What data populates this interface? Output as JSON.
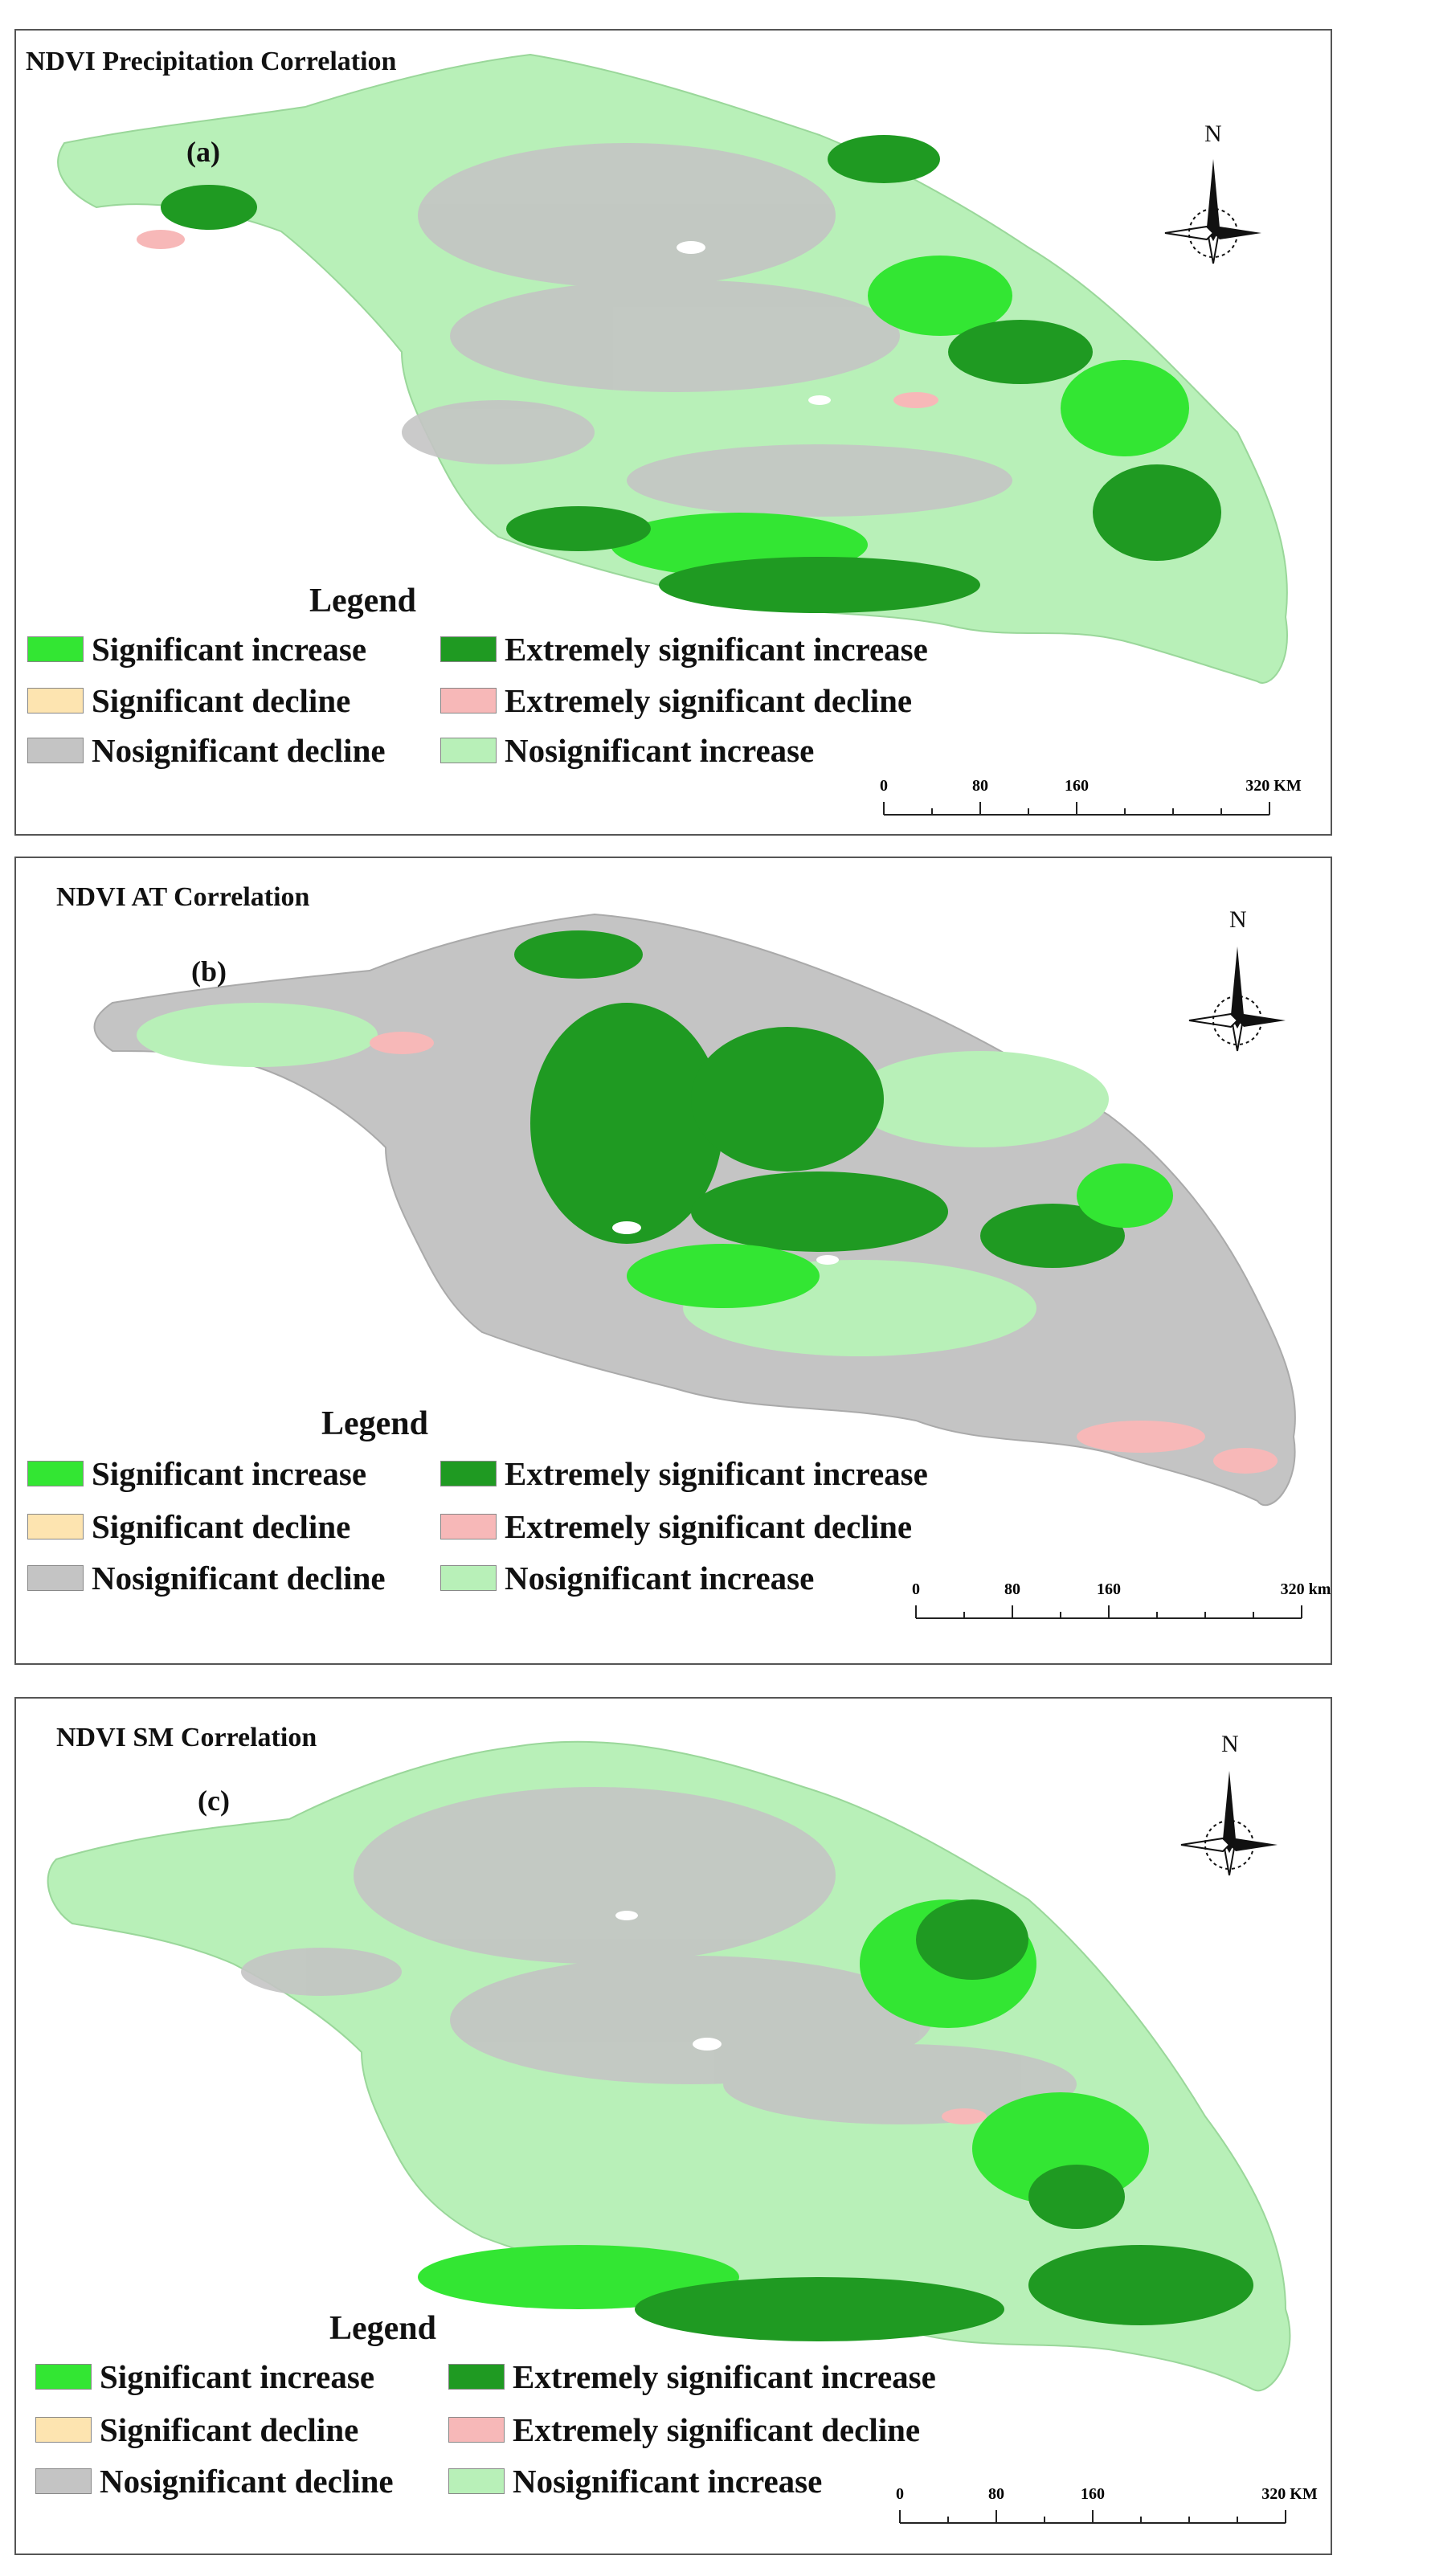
{
  "colors": {
    "significant_increase": "#33e633",
    "extremely_significant_increase": "#1f9a22",
    "significant_decline": "#fde4b0",
    "extremely_significant_decline": "#f7b8b8",
    "nosignificant_decline": "#c4c4c4",
    "nosignificant_increase": "#b8f0b8"
  },
  "legend": {
    "title": "Legend",
    "significant_increase": "Significant increase",
    "extremely_significant_increase": "Extremely significant increase",
    "significant_decline": "Significant decline",
    "extremely_significant_decline": "Extremely significant decline",
    "nosignificant_decline": "Nosignificant decline",
    "nosignificant_increase": "Nosignificant increase"
  },
  "compass": {
    "north": "N"
  },
  "panels": [
    {
      "title": "NDVI Precipitation Correlation",
      "label": "(a)",
      "scale": {
        "ticks": [
          "0",
          "80",
          "160",
          "320 KM"
        ]
      }
    },
    {
      "title": "NDVI AT Correlation",
      "label": "(b)",
      "scale": {
        "ticks": [
          "0",
          "80",
          "160",
          "320 km"
        ]
      }
    },
    {
      "title": "NDVI SM Correlation",
      "label": "(c)",
      "scale": {
        "ticks": [
          "0",
          "80",
          "160",
          "320 KM"
        ]
      }
    }
  ]
}
